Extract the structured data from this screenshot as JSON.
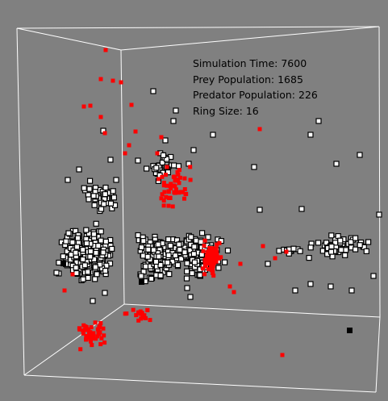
{
  "hud": {
    "simulation_time": "Simulation Time: 7600",
    "prey_population": "Prey Population: 1685",
    "predator_population": "Predator Population: 226",
    "ring_size": "Ring Size: 16"
  },
  "colors": {
    "background": "#808080",
    "box_edges": "#ffffff",
    "prey_fill": "#ffffff",
    "prey_border": "#000000",
    "predator": "#ff0000"
  }
}
